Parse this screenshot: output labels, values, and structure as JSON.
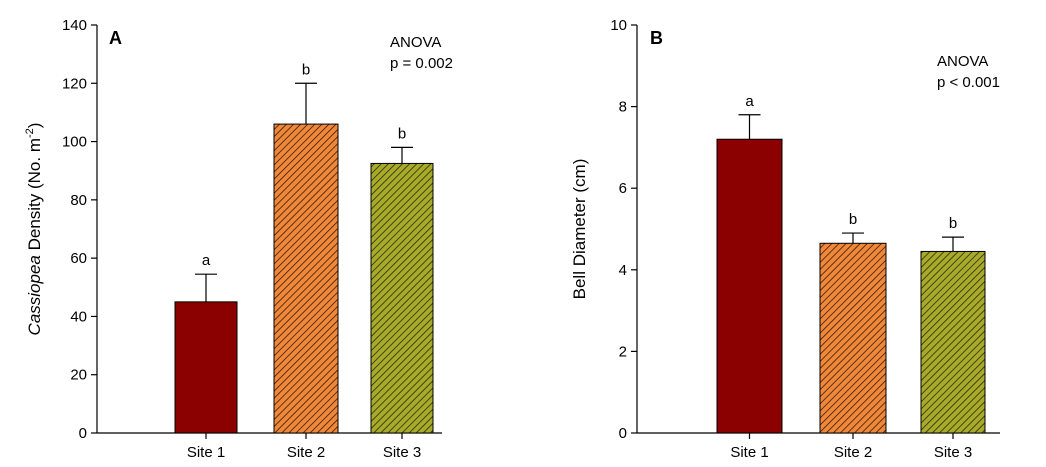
{
  "chart_data": [
    {
      "type": "bar",
      "panel": "A",
      "categories": [
        "Site 1",
        "Site 2",
        "Site 3"
      ],
      "values": [
        45,
        106,
        92.5
      ],
      "errors": [
        9.5,
        14,
        5.5
      ],
      "significance_letters": [
        "a",
        "b",
        "b"
      ],
      "ylabel": {
        "italic": "Cassiopea",
        "rest": " Density (No. m",
        "sup": "-2",
        "close": ")"
      },
      "ylim": [
        0,
        140
      ],
      "yticks": [
        0,
        20,
        40,
        60,
        80,
        100,
        120,
        140
      ],
      "annotation": [
        "ANOVA",
        "p = 0.002"
      ],
      "colors": [
        "#8b0000",
        "#f0883a",
        "#a8aa2a"
      ],
      "hatched": [
        false,
        true,
        true
      ],
      "grid": false,
      "legend": "none"
    },
    {
      "type": "bar",
      "panel": "B",
      "categories": [
        "Site 1",
        "Site 2",
        "Site 3"
      ],
      "values": [
        7.2,
        4.65,
        4.45
      ],
      "errors": [
        0.6,
        0.25,
        0.35
      ],
      "significance_letters": [
        "a",
        "b",
        "b"
      ],
      "ylabel": {
        "italic": "",
        "rest": "Bell Diameter (cm)",
        "sup": "",
        "close": ""
      },
      "ylim": [
        0,
        10
      ],
      "yticks": [
        0,
        2,
        4,
        6,
        8,
        10
      ],
      "annotation": [
        "ANOVA",
        "p < 0.001"
      ],
      "colors": [
        "#8b0000",
        "#f0883a",
        "#a8aa2a"
      ],
      "hatched": [
        false,
        true,
        true
      ],
      "grid": false,
      "legend": "none"
    }
  ]
}
